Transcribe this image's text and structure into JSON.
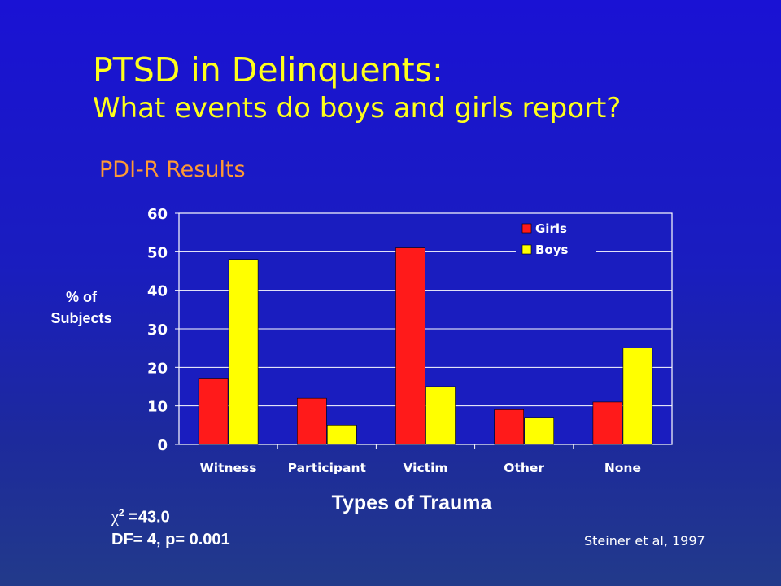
{
  "slide": {
    "title_line1": "PTSD in Delinquents:",
    "title_line2": "What events do boys and girls report?",
    "subtitle": "PDI-R Results",
    "ylabel_line1": "% of",
    "ylabel_line2": "Subjects",
    "chi_symbol": "χ",
    "chi_exponent": "2",
    "chi_value": " =43.0",
    "df_text": "DF= 4, p= 0.001",
    "citation": "Steiner et al,  1997"
  },
  "colors": {
    "girls": "#ff1a1a",
    "boys": "#ffff00",
    "axis_text": "#ffffff",
    "plot_background": "#1a1dbf"
  },
  "chart_data": {
    "type": "bar",
    "title": "",
    "xlabel": "Types of Trauma",
    "ylabel": "% of Subjects",
    "ylim": [
      0,
      60
    ],
    "yticks": [
      0,
      10,
      20,
      30,
      40,
      50,
      60
    ],
    "categories": [
      "Witness",
      "Participant",
      "Victim",
      "Other",
      "None"
    ],
    "series": [
      {
        "name": "Girls",
        "values": [
          17,
          12,
          51,
          9,
          11
        ]
      },
      {
        "name": "Boys",
        "values": [
          48,
          5,
          15,
          7,
          25
        ]
      }
    ],
    "grid": "horizontal",
    "legend_position": "top-right"
  }
}
